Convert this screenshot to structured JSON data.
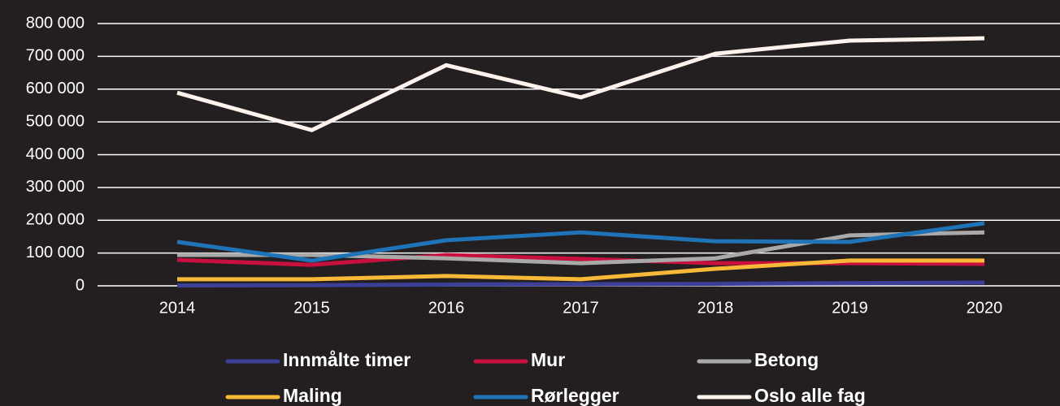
{
  "chart_data": {
    "type": "line",
    "categories": [
      "2014",
      "2015",
      "2016",
      "2017",
      "2018",
      "2019",
      "2020"
    ],
    "series": [
      {
        "name": "Innmålte timer",
        "color": "#3b3f98",
        "values": [
          1000,
          2000,
          4000,
          5000,
          6000,
          8000,
          10000
        ]
      },
      {
        "name": "Mur",
        "color": "#c8103e",
        "values": [
          79000,
          64000,
          94000,
          82000,
          69000,
          69000,
          67000
        ]
      },
      {
        "name": "Betong",
        "color": "#a9a9a9",
        "values": [
          94000,
          94000,
          84000,
          69000,
          84000,
          154000,
          163000
        ]
      },
      {
        "name": "Maling",
        "color": "#f9b938",
        "values": [
          20000,
          20000,
          30000,
          20000,
          52000,
          77000,
          77000
        ]
      },
      {
        "name": "Rørlegger",
        "color": "#1f73b7",
        "values": [
          134000,
          77000,
          139000,
          163000,
          136000,
          134000,
          191000
        ]
      },
      {
        "name": "Oslo alle fag",
        "color": "#fdf3ec",
        "values": [
          589000,
          475000,
          673000,
          575000,
          708000,
          748000,
          755000
        ]
      }
    ],
    "ylim": [
      0,
      800000
    ],
    "yticks": [
      0,
      {
        "value": 100000,
        "label": "100 000"
      },
      {
        "value": 200000,
        "label": "200 000"
      },
      {
        "value": 300000,
        "label": "300 000"
      },
      {
        "value": 400000,
        "label": "400 000"
      },
      {
        "value": 500000,
        "label": "500 000"
      },
      {
        "value": 600000,
        "label": "600 000"
      },
      {
        "value": 700000,
        "label": "700 000"
      },
      {
        "value": 800000,
        "label": "800 000"
      }
    ],
    "grid": true
  }
}
